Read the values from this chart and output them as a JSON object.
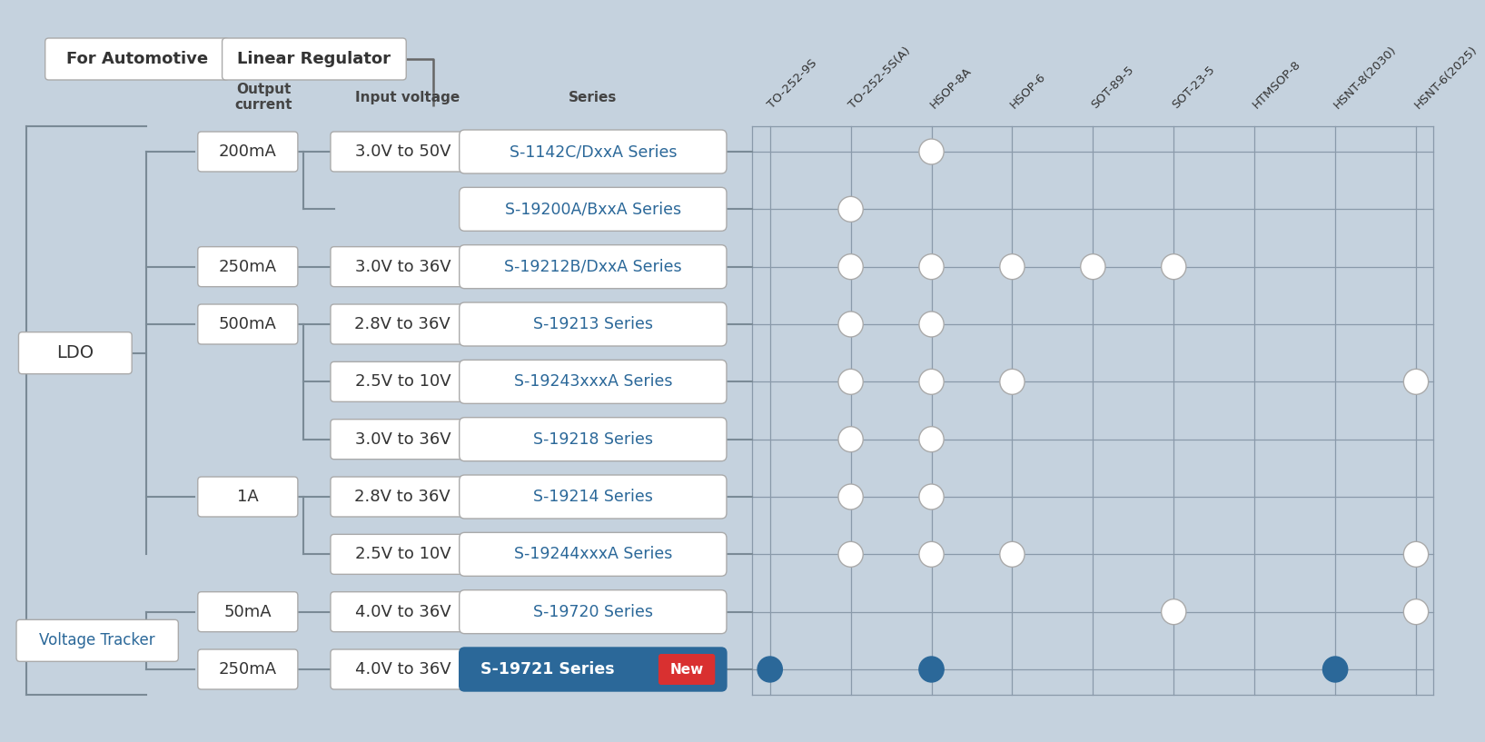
{
  "bg_color": "#c5d2de",
  "grid_color": "#8a9aaa",
  "title_box1": "For Automotive",
  "title_box2": "Linear Regulator",
  "col_headers": [
    "TO-252-9S",
    "TO-252-5S(A)",
    "HSOP-8A",
    "HSOP-6",
    "SOT-89-5",
    "SOT-23-5",
    "HTMSOP-8",
    "HSNT-8(2030)",
    "HSNT-6(2025)"
  ],
  "ldo_label": "LDO",
  "voltage_tracker_label": "Voltage Tracker",
  "rows": [
    {
      "current": "200mA",
      "voltage": "3.0V to 50V",
      "series": "S-1142C/DxxA Series",
      "dots": [
        0,
        0,
        1,
        0,
        0,
        0,
        0,
        0,
        0
      ],
      "dark": false,
      "new_badge": false
    },
    {
      "current": "",
      "voltage": "",
      "series": "S-19200A/BxxA Series",
      "dots": [
        0,
        1,
        0,
        0,
        0,
        0,
        0,
        0,
        0
      ],
      "dark": false,
      "new_badge": false
    },
    {
      "current": "250mA",
      "voltage": "3.0V to 36V",
      "series": "S-19212B/DxxA Series",
      "dots": [
        0,
        1,
        1,
        1,
        1,
        1,
        0,
        0,
        0
      ],
      "dark": false,
      "new_badge": false
    },
    {
      "current": "500mA",
      "voltage": "2.8V to 36V",
      "series": "S-19213 Series",
      "dots": [
        0,
        1,
        1,
        0,
        0,
        0,
        0,
        0,
        0
      ],
      "dark": false,
      "new_badge": false
    },
    {
      "current": "",
      "voltage": "2.5V to 10V",
      "series": "S-19243xxxA Series",
      "dots": [
        0,
        1,
        1,
        1,
        0,
        0,
        0,
        0,
        1
      ],
      "dark": false,
      "new_badge": false
    },
    {
      "current": "",
      "voltage": "3.0V to 36V",
      "series": "S-19218 Series",
      "dots": [
        0,
        1,
        1,
        0,
        0,
        0,
        0,
        0,
        0
      ],
      "dark": false,
      "new_badge": false
    },
    {
      "current": "1A",
      "voltage": "2.8V to 36V",
      "series": "S-19214 Series",
      "dots": [
        0,
        1,
        1,
        0,
        0,
        0,
        0,
        0,
        0
      ],
      "dark": false,
      "new_badge": false
    },
    {
      "current": "",
      "voltage": "2.5V to 10V",
      "series": "S-19244xxxA Series",
      "dots": [
        0,
        1,
        1,
        1,
        0,
        0,
        0,
        0,
        1
      ],
      "dark": false,
      "new_badge": false
    },
    {
      "current": "50mA",
      "voltage": "4.0V to 36V",
      "series": "S-19720 Series",
      "dots": [
        0,
        0,
        0,
        0,
        0,
        1,
        0,
        0,
        1
      ],
      "dark": false,
      "new_badge": false
    },
    {
      "current": "250mA",
      "voltage": "4.0V to 36V",
      "series": "S-19721 Series",
      "dots": [
        1,
        0,
        1,
        0,
        0,
        0,
        0,
        1,
        0
      ],
      "dark": true,
      "new_badge": true
    }
  ],
  "series_text_color": "#2b6899",
  "series_dark_text_color": "#ffffff",
  "series_dark_bg": "#2b6899",
  "series_light_bg": "#ffffff",
  "new_badge_color": "#d93030",
  "dot_white": "#ffffff",
  "dot_dark": "#2b6899",
  "ldo_color": "#333333",
  "vt_color": "#2b6899",
  "line_color": "#7a8a96",
  "header_text_color": "#444444"
}
